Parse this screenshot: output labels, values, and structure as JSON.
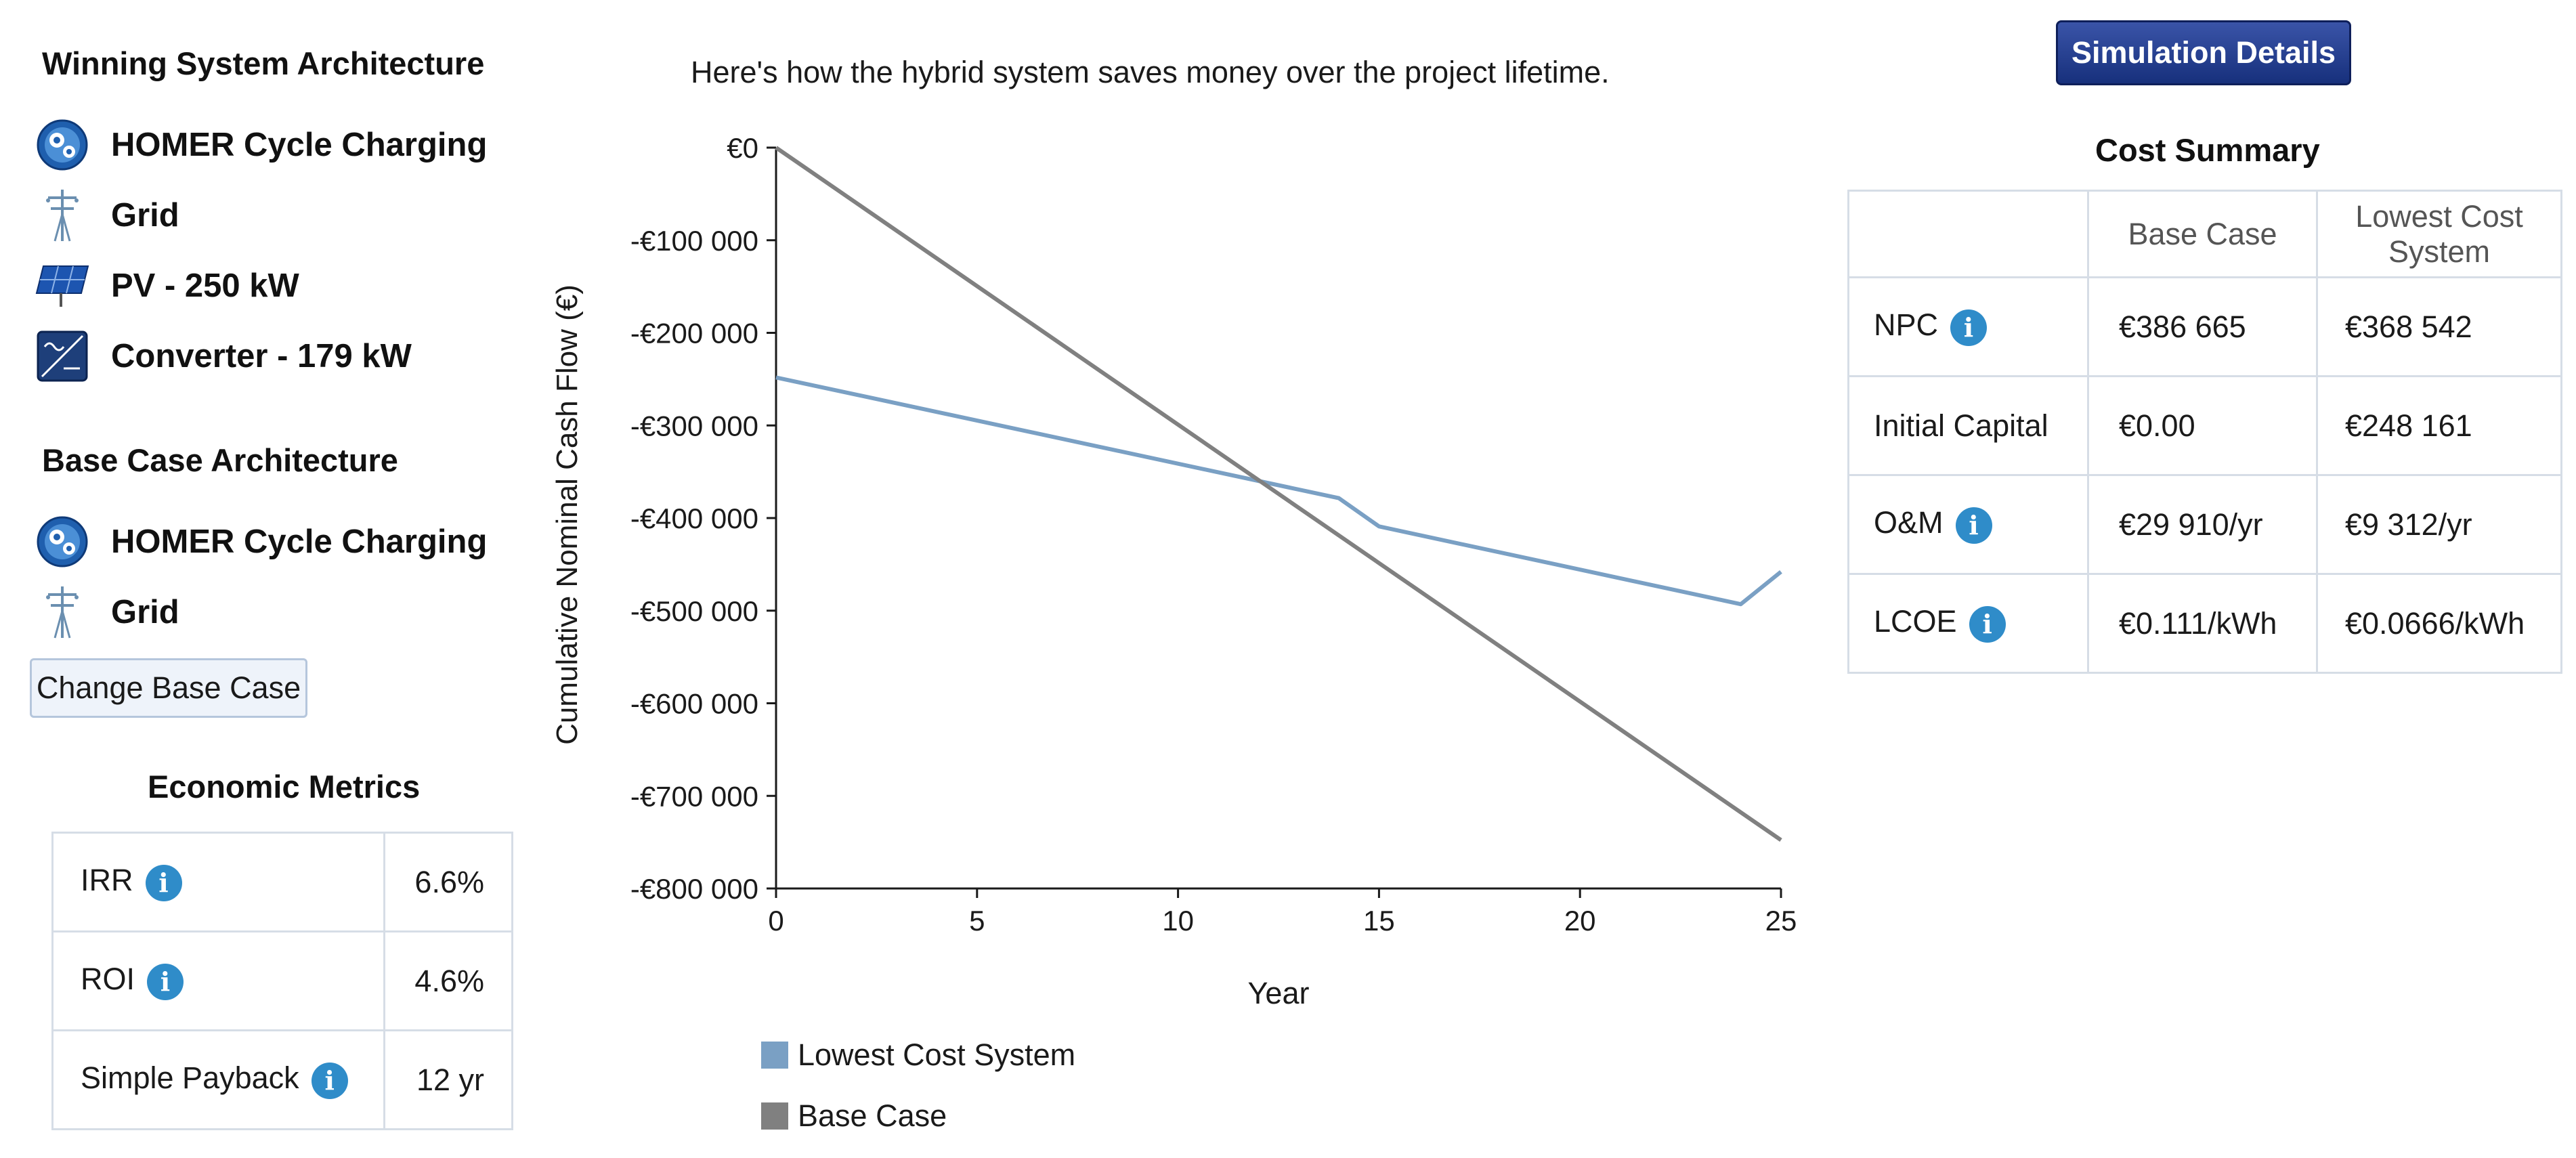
{
  "winning": {
    "title": "Winning System Architecture",
    "items": [
      {
        "icon": "cycle-charging-icon",
        "label": "HOMER Cycle Charging"
      },
      {
        "icon": "grid-tower-icon",
        "label": "Grid"
      },
      {
        "icon": "solar-panel-icon",
        "label": "PV - 250 kW"
      },
      {
        "icon": "converter-icon",
        "label": "Converter - 179 kW"
      }
    ]
  },
  "base_case": {
    "title": "Base Case Architecture",
    "items": [
      {
        "icon": "cycle-charging-icon",
        "label": "HOMER Cycle Charging"
      },
      {
        "icon": "grid-tower-icon",
        "label": "Grid"
      }
    ],
    "change_button": "Change Base Case"
  },
  "economic": {
    "title": "Economic Metrics",
    "rows": [
      {
        "label": "IRR",
        "value": "6.6%"
      },
      {
        "label": "ROI",
        "value": "4.6%"
      },
      {
        "label": "Simple Payback",
        "value": "12 yr"
      }
    ]
  },
  "chart_data": {
    "type": "line",
    "title": "Here's how the hybrid system saves money over the project lifetime.",
    "xlabel": "Year",
    "ylabel": "Cumulative Nominal Cash Flow (€)",
    "xlim": [
      0,
      25
    ],
    "ylim": [
      -800000,
      0
    ],
    "x_ticks": [
      "0",
      "5",
      "10",
      "15",
      "20",
      "25"
    ],
    "y_ticks": [
      "€0",
      "-€100 000",
      "-€200 000",
      "-€300 000",
      "-€400 000",
      "-€500 000",
      "-€600 000",
      "-€700 000",
      "-€800 000"
    ],
    "series": [
      {
        "name": "Lowest Cost System",
        "color": "#7aa0c4",
        "points": [
          [
            0,
            -248161
          ],
          [
            14,
            -378500
          ],
          [
            15,
            -409000
          ],
          [
            24,
            -493000
          ],
          [
            25,
            -458000
          ]
        ]
      },
      {
        "name": "Base Case",
        "color": "#808080",
        "points": [
          [
            0,
            0
          ],
          [
            25,
            -747750
          ]
        ]
      }
    ]
  },
  "sim_button": "Simulation Details",
  "cost_summary": {
    "title": "Cost Summary",
    "headers": [
      "Base Case",
      "Lowest Cost System"
    ],
    "rows": [
      {
        "label": "NPC",
        "info": true,
        "base": "€386 665",
        "lowest": "€368 542"
      },
      {
        "label": "Initial Capital",
        "info": false,
        "base": "€0.00",
        "lowest": "€248 161"
      },
      {
        "label": "O&M",
        "info": true,
        "base": "€29 910/yr",
        "lowest": "€9 312/yr"
      },
      {
        "label": "LCOE",
        "info": true,
        "base": "€0.111/kWh",
        "lowest": "€0.0666/kWh"
      }
    ]
  },
  "info_glyph": "i"
}
